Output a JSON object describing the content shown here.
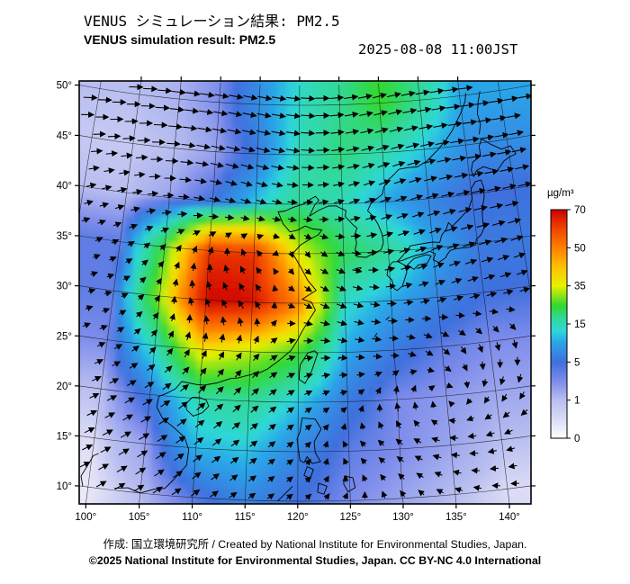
{
  "header": {
    "title_ja": "VENUS シミュレーション結果: PM2.5",
    "title_en": "VENUS simulation result: PM2.5",
    "timestamp": "2025-08-08 11:00JST"
  },
  "footer": {
    "credit_line": "作成: 国立環境研究所 / Created by National Institute for Environmental Studies, Japan.",
    "license_line": "©2025 National Institute for Environmental Studies, Japan. CC BY-NC 4.0 International"
  },
  "axes": {
    "x_tick_labels": [
      "100°",
      "105°",
      "110°",
      "115°",
      "120°",
      "125°",
      "130°",
      "135°",
      "140°"
    ],
    "x_tick_lons": [
      100,
      105,
      110,
      115,
      120,
      125,
      130,
      135,
      140
    ],
    "y_tick_labels": [
      "50°",
      "45°",
      "40°",
      "35°",
      "30°",
      "25°",
      "20°",
      "15°",
      "10°"
    ],
    "y_tick_lats": [
      50,
      45,
      40,
      35,
      30,
      25,
      20,
      15,
      10
    ]
  },
  "chart_data": {
    "type": "heatmap",
    "title": "VENUS simulation result: PM2.5",
    "variable": "PM2.5",
    "region": "East Asia",
    "datetime": "2025-08-08 11:00JST",
    "lon_range": [
      100,
      140
    ],
    "lat_range": [
      10,
      50
    ],
    "overlays": [
      "wind-vector-arrows",
      "coastlines",
      "graticule"
    ],
    "colorbar": {
      "unit": "µg/m³",
      "tick_values": [
        0,
        1,
        5,
        15,
        35,
        50,
        70
      ],
      "stop_t": [
        0,
        0.08,
        0.167,
        0.25,
        0.333,
        0.42,
        0.47,
        0.52,
        0.58,
        0.667,
        0.75,
        0.833,
        0.92,
        1
      ],
      "stop_colors": [
        "#ffffff",
        "#dcdcf5",
        "#b8bef0",
        "#7d8cea",
        "#3f6fdd",
        "#2aa6e8",
        "#2fd8d8",
        "#30d8a0",
        "#30d830",
        "#e8f000",
        "#ffc000",
        "#ff8000",
        "#f04000",
        "#cc0000"
      ]
    },
    "grid": {
      "lons": [
        100,
        105,
        110,
        115,
        120,
        125,
        130,
        135,
        140
      ],
      "lats": [
        50,
        45,
        40,
        35,
        30,
        25,
        20,
        15,
        10
      ],
      "pm25": [
        [
          1.0,
          1.5,
          3.0,
          8.0,
          14.0,
          18.0,
          25.0,
          18.0,
          10.0
        ],
        [
          0.8,
          1.0,
          2.0,
          6.0,
          15.0,
          20.0,
          16.0,
          12.0,
          8.0
        ],
        [
          1.0,
          2.0,
          5.0,
          12.0,
          18.0,
          15.0,
          10.0,
          7.0,
          5.0
        ],
        [
          4.0,
          25.0,
          62.0,
          62.0,
          35.0,
          22.0,
          18.0,
          10.0,
          6.0
        ],
        [
          4.0,
          30.0,
          70.0,
          68.0,
          50.0,
          14.0,
          10.0,
          7.0,
          5.0
        ],
        [
          3.0,
          15.0,
          38.0,
          32.0,
          25.0,
          10.0,
          6.0,
          4.0,
          3.0
        ],
        [
          1.0,
          6.0,
          16.0,
          18.0,
          12.0,
          6.0,
          3.0,
          2.5,
          2.0
        ],
        [
          0.5,
          2.0,
          11.0,
          12.0,
          7.0,
          4.0,
          3.0,
          2.0,
          1.0
        ],
        [
          0.3,
          1.0,
          4.0,
          7.0,
          5.0,
          3.0,
          2.0,
          1.0,
          0.5
        ]
      ]
    },
    "wind": {
      "lons": [
        100,
        105,
        110,
        115,
        120,
        125,
        130,
        135,
        140
      ],
      "lats": [
        50,
        45,
        40,
        35,
        30,
        25,
        20,
        15,
        10
      ],
      "u": [
        [
          2.6,
          2.8,
          3.0,
          3.0,
          2.8,
          2.6,
          2.6,
          2.8,
          3.0
        ],
        [
          2.0,
          2.4,
          2.6,
          2.6,
          2.4,
          2.2,
          2.2,
          2.5,
          2.8
        ],
        [
          1.2,
          1.5,
          1.6,
          1.4,
          1.2,
          1.4,
          1.8,
          2.2,
          2.5
        ],
        [
          0.6,
          0.4,
          0.2,
          -0.4,
          0.3,
          1.0,
          1.5,
          2.0,
          2.2
        ],
        [
          0.5,
          0.2,
          -0.5,
          -0.8,
          0.8,
          1.5,
          1.2,
          1.2,
          1.5
        ],
        [
          0.8,
          0.6,
          0.3,
          0.5,
          1.2,
          1.2,
          1.0,
          0.8,
          0.2
        ],
        [
          1.2,
          1.4,
          1.2,
          1.0,
          0.8,
          0.4,
          0.0,
          0.2,
          -0.5
        ],
        [
          1.5,
          1.6,
          1.4,
          1.0,
          0.5,
          -0.3,
          -0.8,
          -1.0,
          -1.0
        ],
        [
          1.4,
          1.5,
          1.2,
          0.8,
          0.5,
          0.2,
          -0.3,
          -0.6,
          -0.8
        ]
      ],
      "v": [
        [
          0.3,
          0.0,
          -0.3,
          -0.5,
          -0.3,
          0.2,
          0.5,
          0.3,
          0.0
        ],
        [
          0.4,
          0.1,
          -0.4,
          -0.6,
          -0.3,
          0.3,
          0.6,
          0.4,
          0.1
        ],
        [
          0.5,
          0.2,
          -0.3,
          -0.5,
          0.0,
          0.4,
          0.6,
          0.5,
          0.2
        ],
        [
          0.4,
          0.5,
          0.8,
          0.5,
          -0.6,
          -0.4,
          0.3,
          0.6,
          0.4
        ],
        [
          0.2,
          0.5,
          0.9,
          1.0,
          -0.5,
          -0.6,
          0.0,
          0.4,
          0.3
        ],
        [
          0.5,
          0.8,
          1.0,
          0.8,
          0.3,
          -0.2,
          -0.2,
          -0.8,
          -1.0
        ],
        [
          0.8,
          1.0,
          1.2,
          1.0,
          0.5,
          0.2,
          1.0,
          0.1,
          -0.8
        ],
        [
          1.0,
          1.2,
          1.2,
          0.8,
          0.4,
          0.3,
          0.6,
          0.2,
          -0.2
        ],
        [
          1.0,
          1.2,
          1.0,
          0.6,
          0.4,
          0.4,
          0.5,
          0.3,
          0.1
        ]
      ]
    },
    "coastlines": [
      [
        [
          102.5,
          10.2
        ],
        [
          103.8,
          10.4
        ],
        [
          105.0,
          10.0
        ],
        [
          106.2,
          10.5
        ],
        [
          107.3,
          10.7
        ],
        [
          108.1,
          11.7
        ],
        [
          109.2,
          13.2
        ],
        [
          109.3,
          14.8
        ],
        [
          108.8,
          16.0
        ],
        [
          107.8,
          16.8
        ],
        [
          106.5,
          17.7
        ],
        [
          105.8,
          18.8
        ],
        [
          105.9,
          19.9
        ],
        [
          106.7,
          20.3
        ],
        [
          107.5,
          20.8
        ],
        [
          108.1,
          21.6
        ],
        [
          109.7,
          21.4
        ],
        [
          110.4,
          21.4
        ],
        [
          111.7,
          21.7
        ],
        [
          113.0,
          22.2
        ],
        [
          113.8,
          22.3
        ],
        [
          114.8,
          22.6
        ],
        [
          116.0,
          22.9
        ],
        [
          116.8,
          23.3
        ],
        [
          118.0,
          24.2
        ],
        [
          119.2,
          25.2
        ],
        [
          119.8,
          26.1
        ],
        [
          120.4,
          27.2
        ],
        [
          121.1,
          28.3
        ],
        [
          121.8,
          29.3
        ],
        [
          121.4,
          30.1
        ],
        [
          120.4,
          30.4
        ],
        [
          121.2,
          30.9
        ],
        [
          121.9,
          31.3
        ],
        [
          121.0,
          32.3
        ],
        [
          120.3,
          33.5
        ],
        [
          119.6,
          34.6
        ],
        [
          119.3,
          35.0
        ],
        [
          120.2,
          35.9
        ],
        [
          121.3,
          36.5
        ],
        [
          122.2,
          36.9
        ],
        [
          122.6,
          37.4
        ],
        [
          121.6,
          37.5
        ],
        [
          120.7,
          37.8
        ],
        [
          119.9,
          37.4
        ],
        [
          119.0,
          37.2
        ],
        [
          118.2,
          38.0
        ],
        [
          117.8,
          38.8
        ],
        [
          117.6,
          39.2
        ],
        [
          118.4,
          39.3
        ],
        [
          119.4,
          39.7
        ],
        [
          120.5,
          40.0
        ],
        [
          121.3,
          40.5
        ],
        [
          121.9,
          40.8
        ],
        [
          122.3,
          40.4
        ],
        [
          121.8,
          39.9
        ],
        [
          121.2,
          38.8
        ],
        [
          122.3,
          39.4
        ],
        [
          123.4,
          39.8
        ],
        [
          124.3,
          39.8
        ],
        [
          124.7,
          39.6
        ],
        [
          125.4,
          39.3
        ],
        [
          125.3,
          38.7
        ],
        [
          126.2,
          37.8
        ],
        [
          126.6,
          37.5
        ],
        [
          126.3,
          36.8
        ],
        [
          126.5,
          36.0
        ],
        [
          126.3,
          35.3
        ],
        [
          126.5,
          34.6
        ],
        [
          127.5,
          34.5
        ],
        [
          128.4,
          34.9
        ],
        [
          129.2,
          35.2
        ],
        [
          129.5,
          35.9
        ],
        [
          129.4,
          36.8
        ],
        [
          129.0,
          37.8
        ],
        [
          128.5,
          38.6
        ],
        [
          127.9,
          39.2
        ],
        [
          128.3,
          39.9
        ],
        [
          129.7,
          40.8
        ],
        [
          129.9,
          41.5
        ],
        [
          130.6,
          42.3
        ],
        [
          131.2,
          42.7
        ],
        [
          131.8,
          43.2
        ],
        [
          132.9,
          43.3
        ],
        [
          134.0,
          43.3
        ],
        [
          135.2,
          43.8
        ],
        [
          136.6,
          44.8
        ],
        [
          137.7,
          45.7
        ],
        [
          138.6,
          46.6
        ],
        [
          139.3,
          47.5
        ],
        [
          140.0,
          48.4
        ],
        [
          140.6,
          49.4
        ],
        [
          140.8,
          50.2
        ]
      ],
      [
        [
          108.7,
          19.4
        ],
        [
          109.3,
          20.1
        ],
        [
          110.1,
          20.1
        ],
        [
          110.7,
          19.9
        ],
        [
          111.0,
          19.3
        ],
        [
          110.4,
          18.6
        ],
        [
          109.5,
          18.2
        ],
        [
          108.8,
          18.8
        ],
        [
          108.7,
          19.4
        ]
      ],
      [
        [
          120.1,
          22.9
        ],
        [
          120.2,
          23.8
        ],
        [
          121.0,
          25.0
        ],
        [
          121.7,
          25.2
        ],
        [
          122.0,
          24.9
        ],
        [
          121.4,
          23.2
        ],
        [
          120.7,
          21.9
        ],
        [
          120.1,
          22.3
        ],
        [
          120.1,
          22.9
        ]
      ],
      [
        [
          130.4,
          31.2
        ],
        [
          130.2,
          32.1
        ],
        [
          129.7,
          32.6
        ],
        [
          129.9,
          33.4
        ],
        [
          130.4,
          33.9
        ],
        [
          131.0,
          33.9
        ],
        [
          131.7,
          33.5
        ],
        [
          131.9,
          32.8
        ],
        [
          131.3,
          31.4
        ],
        [
          130.7,
          31.0
        ],
        [
          130.4,
          31.2
        ]
      ],
      [
        [
          132.7,
          33.0
        ],
        [
          132.0,
          33.5
        ],
        [
          132.8,
          34.1
        ],
        [
          134.2,
          34.4
        ],
        [
          134.7,
          34.2
        ],
        [
          134.2,
          33.5
        ],
        [
          133.2,
          33.4
        ],
        [
          132.7,
          33.0
        ]
      ],
      [
        [
          130.9,
          33.9
        ],
        [
          131.5,
          34.4
        ],
        [
          132.5,
          35.4
        ],
        [
          133.5,
          35.5
        ],
        [
          135.0,
          35.6
        ],
        [
          135.8,
          35.5
        ],
        [
          136.1,
          36.2
        ],
        [
          136.7,
          36.8
        ],
        [
          137.0,
          37.4
        ],
        [
          137.4,
          37.0
        ],
        [
          138.5,
          37.8
        ],
        [
          139.4,
          38.5
        ],
        [
          140.0,
          39.5
        ],
        [
          140.0,
          40.5
        ],
        [
          140.6,
          41.2
        ],
        [
          141.3,
          41.3
        ],
        [
          141.5,
          40.5
        ],
        [
          141.4,
          39.5
        ],
        [
          141.0,
          38.4
        ],
        [
          140.9,
          37.4
        ],
        [
          140.9,
          36.4
        ],
        [
          140.5,
          35.8
        ],
        [
          139.9,
          35.4
        ],
        [
          139.8,
          34.9
        ],
        [
          139.1,
          34.7
        ],
        [
          138.3,
          34.7
        ],
        [
          137.5,
          34.7
        ],
        [
          136.9,
          34.6
        ],
        [
          136.5,
          34.2
        ],
        [
          136.3,
          33.9
        ],
        [
          135.5,
          33.5
        ],
        [
          134.9,
          33.8
        ],
        [
          135.2,
          34.4
        ],
        [
          134.6,
          34.7
        ],
        [
          133.9,
          34.5
        ],
        [
          133.0,
          34.4
        ],
        [
          132.2,
          34.2
        ],
        [
          131.5,
          34.0
        ],
        [
          130.9,
          33.9
        ]
      ],
      [
        [
          140.5,
          41.7
        ],
        [
          140.3,
          42.4
        ],
        [
          140.6,
          43.2
        ],
        [
          141.6,
          43.7
        ],
        [
          141.6,
          44.7
        ],
        [
          142.0,
          45.4
        ],
        [
          142.9,
          44.8
        ],
        [
          144.2,
          44.1
        ],
        [
          145.3,
          44.3
        ],
        [
          145.8,
          43.4
        ],
        [
          145.0,
          43.2
        ],
        [
          144.3,
          42.9
        ],
        [
          143.3,
          42.0
        ],
        [
          142.5,
          42.3
        ],
        [
          141.8,
          42.6
        ],
        [
          140.9,
          42.3
        ],
        [
          140.5,
          41.7
        ]
      ],
      [
        [
          141.8,
          45.9
        ],
        [
          142.1,
          46.9
        ],
        [
          141.9,
          48.0
        ],
        [
          142.2,
          49.2
        ],
        [
          142.6,
          50.2
        ]
      ],
      [
        [
          126.2,
          33.4
        ],
        [
          126.9,
          33.5
        ],
        [
          126.6,
          33.2
        ],
        [
          126.2,
          33.4
        ]
      ],
      [
        [
          120.4,
          18.4
        ],
        [
          121.7,
          18.3
        ],
        [
          122.3,
          17.3
        ],
        [
          121.6,
          16.0
        ],
        [
          121.7,
          14.9
        ],
        [
          122.2,
          14.0
        ],
        [
          121.4,
          13.8
        ],
        [
          120.9,
          14.5
        ],
        [
          120.6,
          13.9
        ],
        [
          120.2,
          14.1
        ],
        [
          119.9,
          16.3
        ],
        [
          120.2,
          17.0
        ],
        [
          120.4,
          18.4
        ]
      ],
      [
        [
          120.9,
          13.5
        ],
        [
          121.5,
          13.2
        ],
        [
          121.2,
          12.3
        ],
        [
          120.6,
          12.6
        ],
        [
          120.9,
          13.5
        ]
      ],
      [
        [
          122.0,
          11.8
        ],
        [
          122.8,
          11.5
        ],
        [
          122.5,
          10.7
        ],
        [
          121.9,
          10.9
        ],
        [
          122.0,
          11.8
        ]
      ],
      [
        [
          124.5,
          12.5
        ],
        [
          125.3,
          12.3
        ],
        [
          125.5,
          11.3
        ],
        [
          124.8,
          10.9
        ],
        [
          124.4,
          11.7
        ],
        [
          124.5,
          12.5
        ]
      ],
      [
        [
          119.5,
          11.5
        ],
        [
          118.1,
          10.0
        ]
      ],
      [
        [
          100.6,
          13.5
        ],
        [
          100.1,
          13.2
        ],
        [
          99.8,
          12.4
        ],
        [
          99.2,
          11.0
        ],
        [
          99.5,
          10.0
        ]
      ],
      [
        [
          128.0,
          26.4
        ],
        [
          128.3,
          26.8
        ]
      ],
      [
        [
          129.3,
          28.1
        ],
        [
          129.7,
          28.4
        ]
      ],
      [
        [
          124.1,
          24.3
        ],
        [
          124.5,
          24.5
        ]
      ]
    ]
  }
}
